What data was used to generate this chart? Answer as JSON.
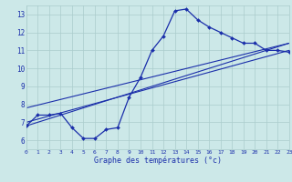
{
  "xlabel": "Graphe des températures (°c)",
  "background_color": "#cce8e8",
  "grid_color": "#aacccc",
  "line_color": "#1a2eaa",
  "hours": [
    0,
    1,
    2,
    3,
    4,
    5,
    6,
    7,
    8,
    9,
    10,
    11,
    12,
    13,
    14,
    15,
    16,
    17,
    18,
    19,
    20,
    21,
    22,
    23
  ],
  "temps": [
    6.8,
    7.4,
    7.4,
    7.5,
    6.7,
    6.1,
    6.1,
    6.6,
    6.7,
    8.4,
    9.5,
    11.0,
    11.8,
    13.2,
    13.3,
    12.7,
    12.3,
    12.0,
    11.7,
    11.4,
    11.4,
    11.0,
    11.0,
    10.9
  ],
  "ylim": [
    5.5,
    13.5
  ],
  "yticks": [
    6,
    7,
    8,
    9,
    10,
    11,
    12,
    13
  ],
  "xlim": [
    0,
    23
  ],
  "figsize": [
    3.2,
    2.0
  ],
  "dpi": 100,
  "reg_lines": [
    {
      "x": [
        0,
        23
      ],
      "y": [
        7.0,
        11.0
      ]
    },
    {
      "x": [
        0,
        23
      ],
      "y": [
        7.8,
        11.4
      ]
    },
    {
      "x": [
        0,
        23
      ],
      "y": [
        6.8,
        11.4
      ]
    }
  ]
}
